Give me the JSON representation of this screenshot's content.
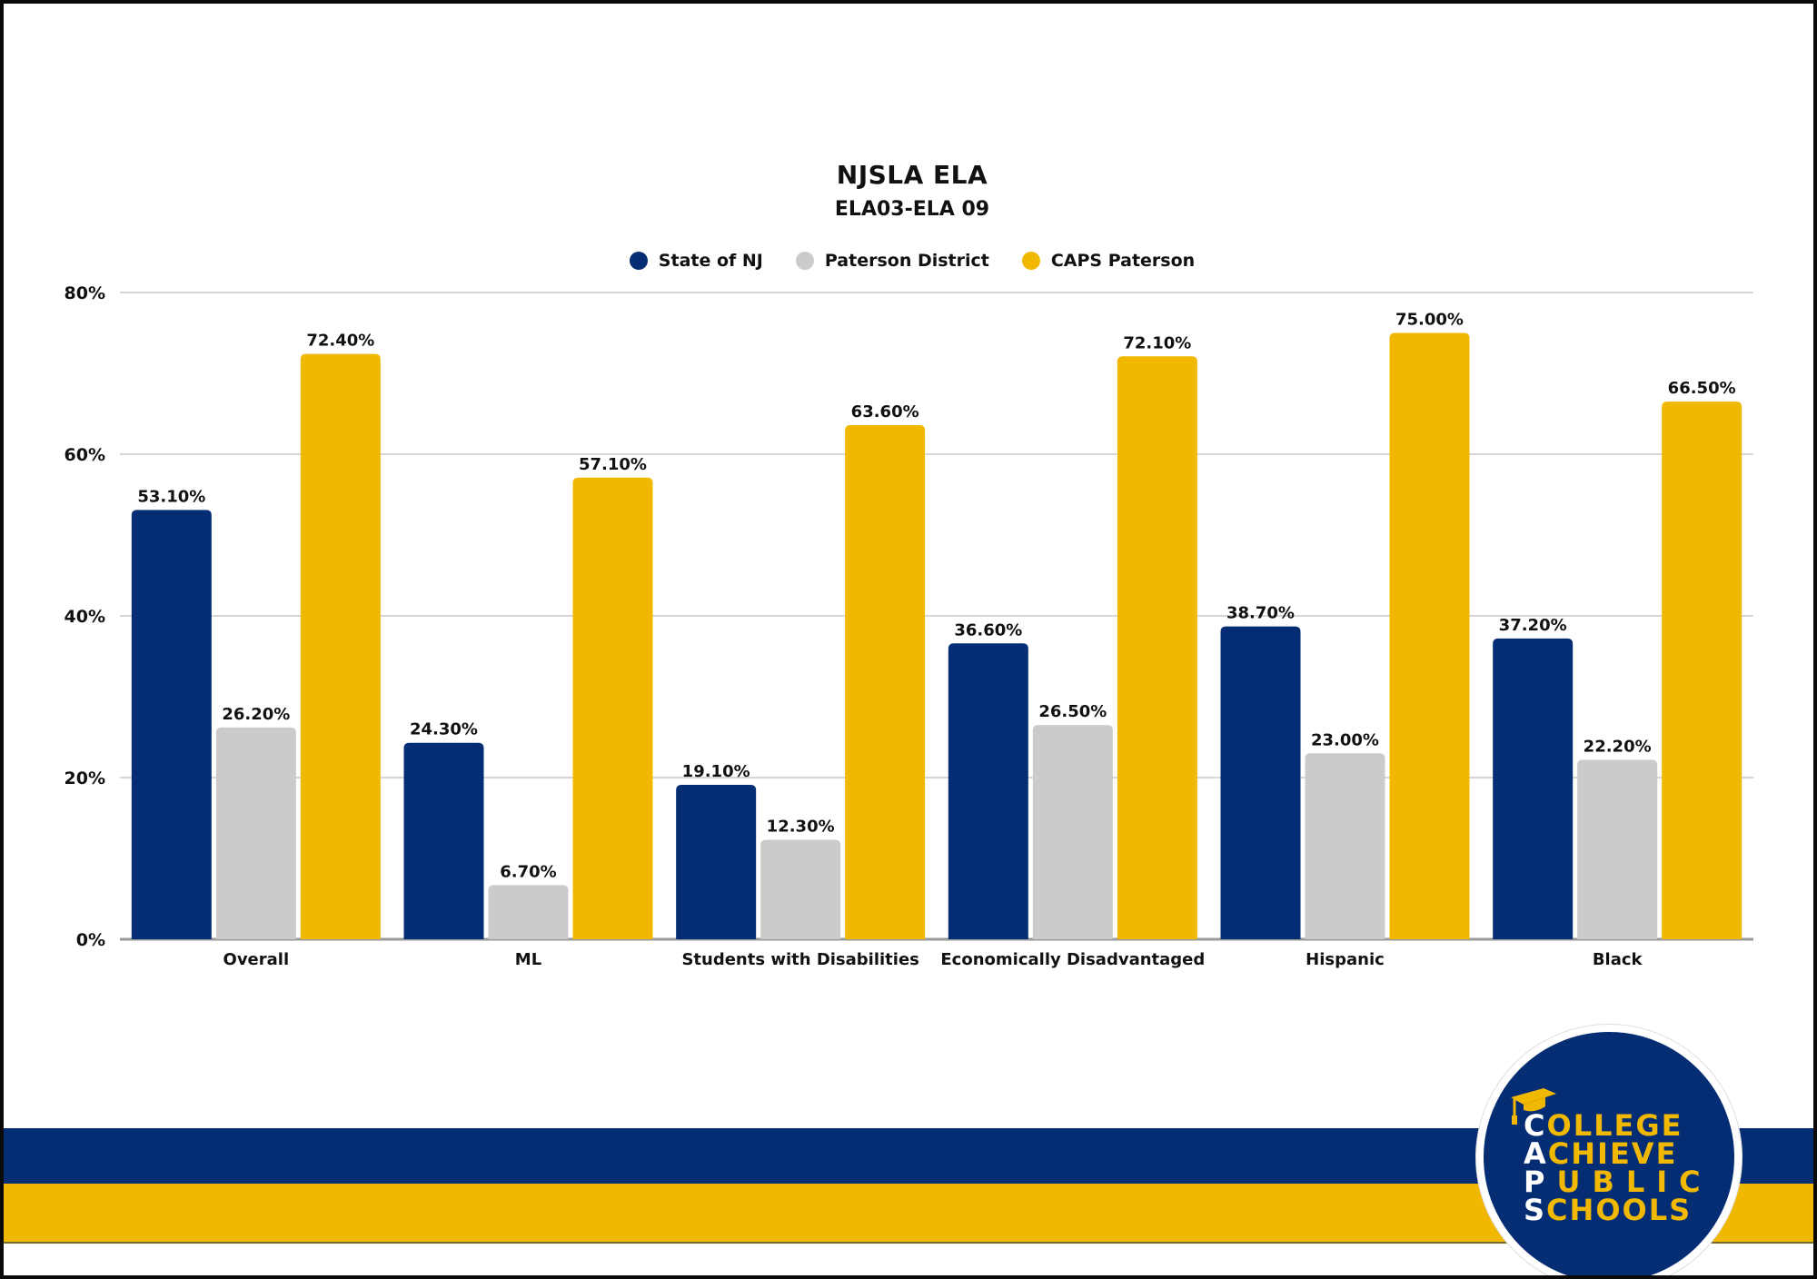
{
  "colors": {
    "state": "#052d73",
    "district": "#cbcbcb",
    "caps": "#f0b800",
    "grid": "#d6d6d6",
    "text": "#111111"
  },
  "chart_data": {
    "type": "bar",
    "title": "NJSLA ELA",
    "subtitle": "ELA03-ELA 09",
    "xlabel": "",
    "ylabel": "",
    "ylim": [
      0,
      80
    ],
    "yticks": [
      0,
      20,
      40,
      60,
      80
    ],
    "ytick_labels": [
      "0%",
      "20%",
      "40%",
      "60%",
      "80%"
    ],
    "grid": true,
    "legend_position": "top-center",
    "categories": [
      "Overall",
      "ML",
      "Students with Disabilities",
      "Economically Disadvantaged",
      "Hispanic",
      "Black"
    ],
    "series": [
      {
        "name": "State of NJ",
        "color": "#052d73",
        "values": [
          53.1,
          24.3,
          19.1,
          36.6,
          38.7,
          37.2
        ],
        "labels": [
          "53.10%",
          "24.30%",
          "19.10%",
          "36.60%",
          "38.70%",
          "37.20%"
        ]
      },
      {
        "name": "Paterson District",
        "color": "#cbcbcb",
        "values": [
          26.2,
          6.7,
          12.3,
          26.5,
          23.0,
          22.2
        ],
        "labels": [
          "26.20%",
          "6.70%",
          "12.30%",
          "26.50%",
          "23.00%",
          "22.20%"
        ]
      },
      {
        "name": "CAPS Paterson",
        "color": "#f0b800",
        "values": [
          72.4,
          57.1,
          63.6,
          72.1,
          75.0,
          66.5
        ],
        "labels": [
          "72.40%",
          "57.10%",
          "63.60%",
          "72.10%",
          "75.00%",
          "66.50%"
        ]
      }
    ]
  },
  "logo": {
    "lines": [
      {
        "first": "C",
        "rest": "OLLEGE"
      },
      {
        "first": "A",
        "rest": "CHIEVE"
      },
      {
        "first": "P",
        "rest": "UBLIC"
      },
      {
        "first": "S",
        "rest": "CHOOLS"
      }
    ],
    "icon": "graduation-cap-icon"
  }
}
